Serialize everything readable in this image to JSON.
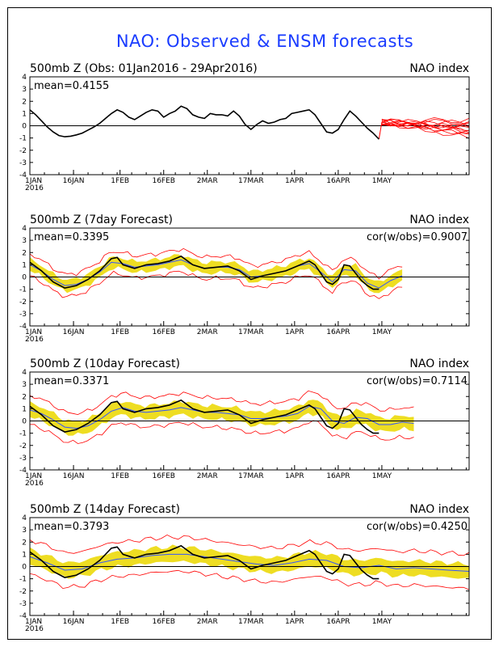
{
  "figure_title": "NAO: Observed & ENSM forecasts",
  "colors": {
    "title": "#1a3cff",
    "observed": "#000000",
    "member": "#ff0000",
    "ens_mean": "#3355ff",
    "spread": "#eedd22",
    "zero_line": "#000000"
  },
  "chart_data": [
    {
      "type": "line",
      "title": "500mb Z (Obs: 01Jan2016 - 29Apr2016)",
      "right_title": "NAO index",
      "mean_label": "mean=0.4155",
      "cor_label": "",
      "x_range_days": [
        0,
        151
      ],
      "ylim": [
        -4,
        4
      ],
      "yticks": [
        4,
        3,
        2,
        1,
        0,
        -1,
        -2,
        -3,
        -4
      ],
      "xtick_labels": [
        "1JAN\n2016",
        "16JAN",
        "1FEB",
        "16FEB",
        "2MAR",
        "17MAR",
        "1APR",
        "16APR",
        "1MAY"
      ],
      "observed": {
        "days": [
          0,
          2,
          4,
          6,
          8,
          10,
          12,
          14,
          16,
          18,
          20,
          22,
          24,
          26,
          28,
          30,
          32,
          34,
          36,
          38,
          40,
          42,
          44,
          46,
          48,
          50,
          52,
          54,
          56,
          58,
          60,
          62,
          64,
          66,
          68,
          70,
          72,
          74,
          76,
          78,
          80,
          82,
          84,
          86,
          88,
          90,
          92,
          94,
          96,
          98,
          100,
          102,
          104,
          106,
          108,
          110,
          112,
          114,
          116,
          118,
          120
        ],
        "values": [
          1.3,
          0.9,
          0.4,
          -0.1,
          -0.5,
          -0.8,
          -0.9,
          -0.85,
          -0.75,
          -0.6,
          -0.35,
          -0.1,
          0.2,
          0.6,
          1.0,
          1.3,
          1.1,
          0.7,
          0.5,
          0.8,
          1.1,
          1.3,
          1.2,
          0.7,
          1.0,
          1.2,
          1.6,
          1.4,
          0.9,
          0.7,
          0.6,
          1.0,
          0.9,
          0.9,
          0.8,
          1.2,
          0.8,
          0.1,
          -0.3,
          0.1,
          0.4,
          0.2,
          0.3,
          0.5,
          0.6,
          1.0,
          1.1,
          1.2,
          1.3,
          0.9,
          0.2,
          -0.5,
          -0.6,
          -0.3,
          0.5,
          1.2,
          0.8,
          0.3,
          -0.2,
          -0.6,
          -1.1
        ]
      },
      "members": {
        "start_day": 121,
        "start_value": 0.3,
        "end_day": 151,
        "end_values": [
          0.5,
          0.0,
          -0.3,
          -0.5,
          -0.8,
          -0.2,
          0.3,
          -0.6,
          -0.9,
          -0.1,
          0.2,
          -0.4
        ]
      }
    },
    {
      "type": "line",
      "title": "500mb Z (7day Forecast)",
      "right_title": "NAO index",
      "mean_label": "mean=0.3395",
      "cor_label": "cor(w/obs)=0.9007",
      "x_range_days": [
        0,
        151
      ],
      "ylim": [
        -4,
        4
      ],
      "yticks": [
        4,
        3,
        2,
        1,
        0,
        -1,
        -2,
        -3,
        -4
      ],
      "xtick_labels": [
        "1JAN\n2016",
        "16JAN",
        "1FEB",
        "16FEB",
        "2MAR",
        "17MAR",
        "1APR",
        "16APR",
        "1MAY"
      ],
      "observed": {
        "days": [
          0,
          4,
          8,
          12,
          16,
          20,
          24,
          28,
          30,
          32,
          36,
          40,
          44,
          48,
          52,
          56,
          60,
          64,
          68,
          72,
          76,
          80,
          84,
          88,
          92,
          96,
          98,
          100,
          102,
          104,
          106,
          108,
          110,
          112,
          114,
          116,
          118,
          120
        ],
        "values": [
          1.2,
          0.5,
          -0.4,
          -0.9,
          -0.7,
          -0.2,
          0.5,
          1.5,
          1.6,
          1.0,
          0.7,
          1.0,
          1.1,
          1.3,
          1.7,
          1.0,
          0.7,
          0.8,
          0.9,
          0.5,
          -0.2,
          0.1,
          0.3,
          0.5,
          0.9,
          1.3,
          1.0,
          0.3,
          -0.4,
          -0.6,
          -0.2,
          1.0,
          0.9,
          0.3,
          -0.3,
          -0.7,
          -1.0,
          -1.0
        ]
      },
      "ens_mean": {
        "days": [
          0,
          4,
          8,
          12,
          16,
          20,
          24,
          28,
          32,
          36,
          40,
          44,
          48,
          52,
          56,
          60,
          64,
          68,
          72,
          76,
          80,
          84,
          88,
          92,
          96,
          100,
          104,
          108,
          112,
          116,
          120,
          124,
          128
        ],
        "values": [
          1.0,
          0.5,
          -0.2,
          -0.7,
          -0.6,
          -0.2,
          0.4,
          1.2,
          1.1,
          0.8,
          0.9,
          1.0,
          1.2,
          1.4,
          1.0,
          0.7,
          0.8,
          0.8,
          0.6,
          0.0,
          0.1,
          0.3,
          0.5,
          0.9,
          1.1,
          0.4,
          -0.4,
          0.6,
          0.5,
          -0.5,
          -0.9,
          -0.3,
          0.1
        ]
      },
      "spread": 0.45,
      "envelope": 0.9
    },
    {
      "type": "line",
      "title": "500mb Z (10day Forecast)",
      "right_title": "NAO index",
      "mean_label": "mean=0.3371",
      "cor_label": "cor(w/obs)=0.7114",
      "x_range_days": [
        0,
        151
      ],
      "ylim": [
        -4,
        4
      ],
      "yticks": [
        4,
        3,
        2,
        1,
        0,
        -1,
        -2,
        -3,
        -4
      ],
      "xtick_labels": [
        "1JAN\n2016",
        "16JAN",
        "1FEB",
        "16FEB",
        "2MAR",
        "17MAR",
        "1APR",
        "16APR",
        "1MAY"
      ],
      "observed": {
        "days": [
          0,
          4,
          8,
          12,
          16,
          20,
          24,
          28,
          30,
          32,
          36,
          40,
          44,
          48,
          52,
          56,
          60,
          64,
          68,
          72,
          76,
          80,
          84,
          88,
          92,
          96,
          98,
          100,
          102,
          104,
          106,
          108,
          110,
          112,
          114,
          116,
          118,
          120
        ],
        "values": [
          1.2,
          0.5,
          -0.4,
          -0.9,
          -0.7,
          -0.2,
          0.5,
          1.5,
          1.6,
          1.0,
          0.7,
          1.0,
          1.1,
          1.3,
          1.7,
          1.0,
          0.7,
          0.8,
          0.9,
          0.5,
          -0.2,
          0.1,
          0.3,
          0.5,
          0.9,
          1.3,
          1.0,
          0.3,
          -0.4,
          -0.6,
          -0.2,
          1.0,
          0.9,
          0.3,
          -0.3,
          -0.7,
          -1.0,
          -1.0
        ]
      },
      "ens_mean": {
        "days": [
          0,
          4,
          8,
          12,
          16,
          20,
          24,
          28,
          32,
          36,
          40,
          44,
          48,
          52,
          56,
          60,
          64,
          68,
          72,
          76,
          80,
          84,
          88,
          92,
          96,
          100,
          104,
          108,
          112,
          116,
          120,
          124,
          128,
          132
        ],
        "values": [
          0.9,
          0.6,
          0.1,
          -0.5,
          -0.6,
          -0.4,
          0.1,
          0.8,
          1.1,
          0.8,
          0.7,
          0.8,
          0.9,
          1.1,
          0.9,
          0.7,
          0.7,
          0.6,
          0.5,
          0.2,
          0.2,
          0.3,
          0.4,
          0.6,
          1.2,
          1.0,
          0.0,
          -0.2,
          0.3,
          0.2,
          -0.3,
          -0.3,
          -0.1,
          -0.2
        ]
      },
      "spread": 0.55,
      "envelope": 1.2
    },
    {
      "type": "line",
      "title": "500mb Z (14day Forecast)",
      "right_title": "NAO index",
      "mean_label": "mean=0.3793",
      "cor_label": "cor(w/obs)=0.4250",
      "x_range_days": [
        0,
        151
      ],
      "ylim": [
        -4,
        4
      ],
      "yticks": [
        4,
        3,
        2,
        1,
        0,
        -1,
        -2,
        -3,
        -4
      ],
      "xtick_labels": [
        "1JAN\n2016",
        "16JAN",
        "1FEB",
        "16FEB",
        "2MAR",
        "17MAR",
        "1APR",
        "16APR",
        "1MAY"
      ],
      "observed": {
        "days": [
          0,
          4,
          8,
          12,
          16,
          20,
          24,
          28,
          30,
          32,
          36,
          40,
          44,
          48,
          52,
          56,
          60,
          64,
          68,
          72,
          76,
          80,
          84,
          88,
          92,
          96,
          98,
          100,
          102,
          104,
          106,
          108,
          110,
          112,
          114,
          116,
          118,
          120
        ],
        "values": [
          1.2,
          0.5,
          -0.4,
          -0.9,
          -0.7,
          -0.2,
          0.5,
          1.5,
          1.6,
          1.0,
          0.7,
          1.0,
          1.1,
          1.3,
          1.7,
          1.0,
          0.7,
          0.8,
          0.9,
          0.5,
          -0.2,
          0.1,
          0.3,
          0.5,
          0.9,
          1.3,
          1.0,
          0.3,
          -0.4,
          -0.6,
          -0.2,
          1.0,
          0.9,
          0.3,
          -0.3,
          -0.7,
          -1.0,
          -1.0
        ]
      },
      "ens_mean": {
        "days": [
          0,
          6,
          12,
          18,
          24,
          30,
          36,
          42,
          48,
          54,
          60,
          66,
          72,
          78,
          84,
          90,
          96,
          102,
          108,
          114,
          120,
          126,
          132,
          138,
          144,
          151
        ],
        "values": [
          0.8,
          0.3,
          -0.3,
          -0.2,
          0.3,
          0.6,
          0.7,
          0.9,
          1.0,
          1.0,
          0.8,
          0.6,
          0.4,
          0.2,
          0.1,
          0.3,
          0.6,
          0.5,
          0.0,
          -0.1,
          0.1,
          -0.2,
          -0.1,
          -0.2,
          -0.3,
          -0.4
        ]
      },
      "spread": 0.6,
      "envelope": 1.4
    }
  ]
}
